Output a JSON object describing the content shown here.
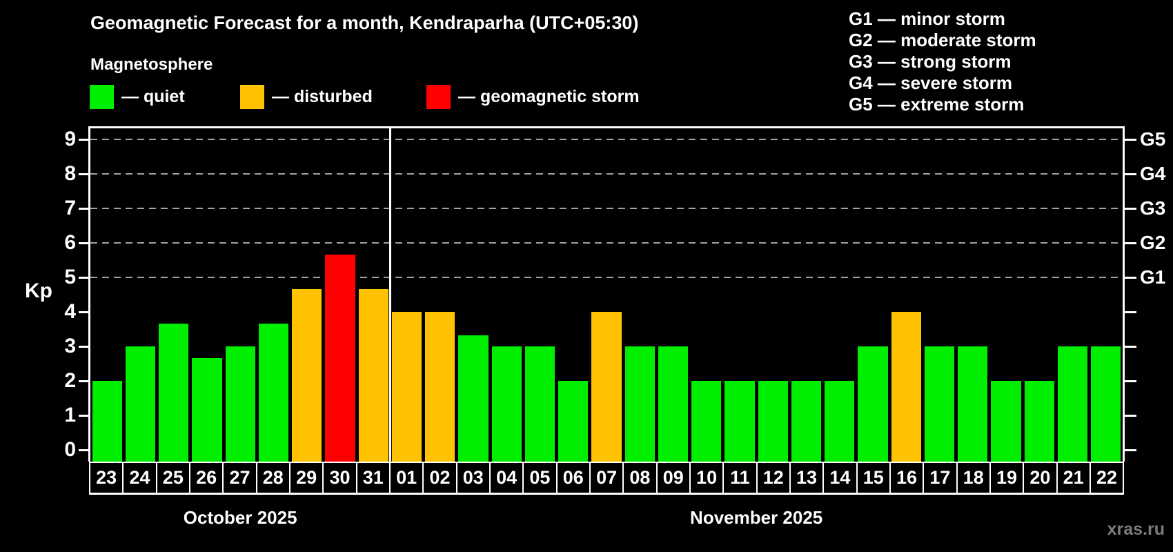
{
  "header": {
    "title": "Geomagnetic Forecast for a month, Kendraparha (UTC+05:30)",
    "subtitle": "Magnetosphere"
  },
  "legend": {
    "items": [
      {
        "label": "— quiet",
        "status": "quiet",
        "color": "#00ee00"
      },
      {
        "label": "— disturbed",
        "status": "disturbed",
        "color": "#ffc200"
      },
      {
        "label": "— geomagnetic storm",
        "status": "storm",
        "color": "#ff0000"
      }
    ]
  },
  "g_legend": [
    "G1 — minor storm",
    "G2 — moderate storm",
    "G3 — strong storm",
    "G4 — severe storm",
    "G5 — extreme storm"
  ],
  "watermark": "xras.ru",
  "chart_data": {
    "type": "bar",
    "title": "Geomagnetic Forecast for a month, Kendraparha (UTC+05:30)",
    "ylabel": "Kp",
    "ylim": [
      0,
      9.3
    ],
    "yticks": [
      0,
      1,
      2,
      3,
      4,
      5,
      6,
      7,
      8,
      9
    ],
    "gridlines_at": [
      5,
      6,
      7,
      8,
      9
    ],
    "grid_style": "dashed gray horizontal lines at Kp 5–9 only",
    "right_axis": [
      {
        "label": "G1",
        "kp": 5
      },
      {
        "label": "G2",
        "kp": 6
      },
      {
        "label": "G3",
        "kp": 7
      },
      {
        "label": "G4",
        "kp": 8
      },
      {
        "label": "G5",
        "kp": 9
      }
    ],
    "status_colors": {
      "quiet": "#00ee00",
      "disturbed": "#ffc200",
      "storm": "#ff0000"
    },
    "months": [
      {
        "label": "October 2025",
        "day_count": 9
      },
      {
        "label": "November 2025",
        "day_count": 22
      }
    ],
    "categories": [
      "23",
      "24",
      "25",
      "26",
      "27",
      "28",
      "29",
      "30",
      "31",
      "01",
      "02",
      "03",
      "04",
      "05",
      "06",
      "07",
      "08",
      "09",
      "10",
      "11",
      "12",
      "13",
      "14",
      "15",
      "16",
      "17",
      "18",
      "19",
      "20",
      "21",
      "22"
    ],
    "values": [
      2,
      3,
      3.67,
      2.67,
      3,
      3.67,
      4.67,
      5.67,
      4.67,
      4,
      4,
      3.33,
      3,
      3,
      2,
      4,
      3,
      3,
      2,
      2,
      2,
      2,
      2,
      3,
      4,
      3,
      3,
      2,
      2,
      3,
      3
    ],
    "statuses": [
      "quiet",
      "quiet",
      "quiet",
      "quiet",
      "quiet",
      "quiet",
      "disturbed",
      "storm",
      "disturbed",
      "disturbed",
      "disturbed",
      "quiet",
      "quiet",
      "quiet",
      "quiet",
      "disturbed",
      "quiet",
      "quiet",
      "quiet",
      "quiet",
      "quiet",
      "quiet",
      "quiet",
      "quiet",
      "disturbed",
      "quiet",
      "quiet",
      "quiet",
      "quiet",
      "quiet",
      "quiet"
    ]
  }
}
